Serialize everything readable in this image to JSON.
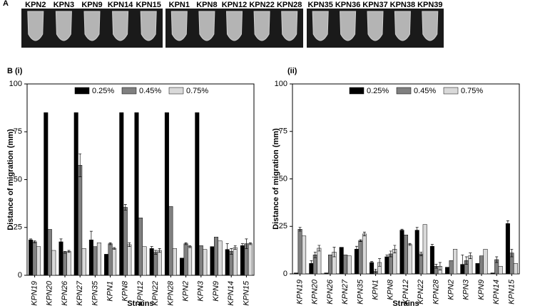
{
  "panel_a": {
    "label": "A",
    "groups": [
      [
        "KPN2",
        "KPN3",
        "KPN9",
        "KPN14",
        "KPN15"
      ],
      [
        "KPN1",
        "KPN8",
        "KPN12",
        "KPN22",
        "KPN28"
      ],
      [
        "KPN35",
        "KPN36",
        "KPN37",
        "KPN38",
        "KPN39"
      ]
    ]
  },
  "chart_data": [
    {
      "type": "bar",
      "title": "B (i)",
      "x_label": "Strains",
      "y_label": "Distance of migration (mm)",
      "categories": [
        "KPN19",
        "KPN20",
        "KPN26",
        "KPN27",
        "KPN35",
        "KPN1",
        "KPN8",
        "KPN12",
        "KPN22",
        "KPN28",
        "KPN2",
        "KPN3",
        "KPN9",
        "KPN14",
        "KPN15"
      ],
      "series": [
        {
          "name": "0.25%",
          "color": "#000000",
          "values": [
            18.5,
            85,
            17.5,
            85,
            18.5,
            11,
            85,
            85,
            14,
            85,
            9,
            85,
            15,
            13.5,
            15.5
          ],
          "errors": [
            0.5,
            0,
            1.5,
            0,
            4.5,
            0,
            0,
            0,
            1,
            0,
            0,
            0,
            0,
            3,
            1
          ]
        },
        {
          "name": "0.45%",
          "color": "#808080",
          "values": [
            17.5,
            24,
            12,
            57.5,
            15,
            16.5,
            35.5,
            30,
            12,
            36,
            16.5,
            15.5,
            20,
            12.5,
            16.5
          ],
          "errors": [
            0.5,
            0,
            0.5,
            6,
            0,
            0.5,
            1.5,
            0,
            1,
            0,
            0.5,
            0,
            0,
            1.5,
            2.5
          ]
        },
        {
          "name": "0.75%",
          "color": "#d9d9d9",
          "values": [
            15,
            13,
            12.5,
            14,
            17,
            14,
            16,
            15,
            13,
            14,
            15,
            13.5,
            18,
            14.5,
            16.5
          ],
          "errors": [
            0,
            0,
            0.5,
            0,
            0,
            0.5,
            1,
            0,
            1,
            0,
            0.5,
            0,
            0,
            1,
            0.5
          ]
        }
      ],
      "ylim": [
        0,
        100
      ],
      "yticks": [
        0,
        25,
        50,
        75,
        100
      ],
      "grid": false,
      "legend": "top"
    },
    {
      "type": "bar",
      "title": "(ii)",
      "x_label": "Strains",
      "y_label": "Distance of migration (mm)",
      "categories": [
        "KPN19",
        "KPN20",
        "KPN26",
        "KPN27",
        "KPN35",
        "KPN1",
        "KPN8",
        "KPN12",
        "KPN22",
        "KPN28",
        "KPN2",
        "KPN3",
        "KPN9",
        "KPN14",
        "KPN15"
      ],
      "series": [
        {
          "name": "0.25%",
          "color": "#000000",
          "values": [
            0.5,
            5.5,
            0.5,
            14,
            13,
            6,
            9,
            23,
            23,
            14.5,
            3.5,
            5,
            5.5,
            0.5,
            26.5
          ],
          "errors": [
            0,
            1.5,
            0,
            0,
            1.5,
            0.5,
            1,
            0.5,
            1.5,
            1,
            0,
            5,
            0,
            0,
            1.5
          ]
        },
        {
          "name": "0.45%",
          "color": "#808080",
          "values": [
            23.5,
            10,
            10,
            10,
            17.5,
            1.5,
            10.5,
            20.5,
            10.5,
            4,
            7,
            7,
            9.5,
            7.5,
            11
          ],
          "errors": [
            1,
            1.5,
            0,
            0,
            0.5,
            1,
            1.5,
            0,
            1,
            1,
            0,
            2,
            0,
            1.5,
            2
          ]
        },
        {
          "name": "0.75%",
          "color": "#d9d9d9",
          "values": [
            20,
            13.5,
            11.5,
            9.5,
            21,
            6,
            13,
            15.5,
            26,
            4,
            13,
            9.5,
            13,
            4,
            5.5
          ],
          "errors": [
            0,
            1.5,
            2.5,
            0,
            1,
            2,
            2,
            0.5,
            0,
            2,
            0,
            1.5,
            0,
            0,
            0
          ]
        }
      ],
      "ylim": [
        0,
        100
      ],
      "yticks": [
        0,
        25,
        50,
        75,
        100
      ],
      "grid": false,
      "legend": "top"
    }
  ]
}
